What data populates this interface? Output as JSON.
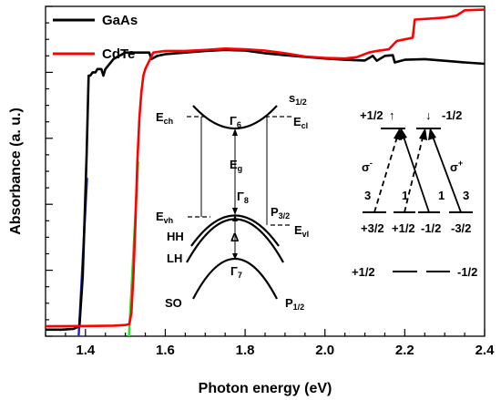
{
  "chart_data": {
    "type": "line",
    "xlabel": "Photon energy (eV)",
    "ylabel": "Absorbance (a. u.)",
    "xlim": [
      1.3,
      2.4
    ],
    "ylim": [
      0,
      1
    ],
    "x_ticks": [
      "1.4",
      "1.6",
      "1.8",
      "2.0",
      "2.2",
      "2.4"
    ],
    "x_tick_values": [
      1.4,
      1.6,
      1.8,
      2.0,
      2.2,
      2.4
    ],
    "y_ticks_labeled": false,
    "legend": {
      "placement": "top-left",
      "entries": [
        "GaAs",
        "CdTe"
      ]
    },
    "series": [
      {
        "name": "GaAs",
        "color": "#000000",
        "points": [
          [
            1.3,
            0.02
          ],
          [
            1.34,
            0.02
          ],
          [
            1.37,
            0.022
          ],
          [
            1.385,
            0.03
          ],
          [
            1.393,
            0.18
          ],
          [
            1.396,
            0.29
          ],
          [
            1.403,
            0.55
          ],
          [
            1.408,
            0.79
          ],
          [
            1.412,
            0.79
          ],
          [
            1.418,
            0.8
          ],
          [
            1.425,
            0.8
          ],
          [
            1.43,
            0.81
          ],
          [
            1.44,
            0.81
          ],
          [
            1.445,
            0.79
          ],
          [
            1.45,
            0.81
          ],
          [
            1.47,
            0.84
          ],
          [
            1.5,
            0.86
          ],
          [
            1.53,
            0.86
          ],
          [
            1.56,
            0.86
          ],
          [
            1.565,
            0.84
          ],
          [
            1.58,
            0.85
          ],
          [
            1.6,
            0.855
          ],
          [
            1.65,
            0.86
          ],
          [
            1.7,
            0.865
          ],
          [
            1.75,
            0.868
          ],
          [
            1.8,
            0.866
          ],
          [
            1.85,
            0.858
          ],
          [
            1.9,
            0.852
          ],
          [
            1.95,
            0.847
          ],
          [
            2.0,
            0.842
          ],
          [
            2.05,
            0.838
          ],
          [
            2.1,
            0.836
          ],
          [
            2.12,
            0.85
          ],
          [
            2.13,
            0.835
          ],
          [
            2.15,
            0.85
          ],
          [
            2.17,
            0.852
          ],
          [
            2.175,
            0.83
          ],
          [
            2.2,
            0.838
          ],
          [
            2.25,
            0.84
          ],
          [
            2.3,
            0.835
          ],
          [
            2.35,
            0.83
          ],
          [
            2.4,
            0.826
          ]
        ]
      },
      {
        "name": "CdTe",
        "color": "#ff0000",
        "points": [
          [
            1.3,
            0.03
          ],
          [
            1.4,
            0.031
          ],
          [
            1.47,
            0.032
          ],
          [
            1.5,
            0.034
          ],
          [
            1.51,
            0.037
          ],
          [
            1.515,
            0.07
          ],
          [
            1.52,
            0.18
          ],
          [
            1.525,
            0.34
          ],
          [
            1.53,
            0.53
          ],
          [
            1.535,
            0.66
          ],
          [
            1.54,
            0.74
          ],
          [
            1.545,
            0.79
          ],
          [
            1.55,
            0.81
          ],
          [
            1.56,
            0.835
          ],
          [
            1.57,
            0.86
          ],
          [
            1.6,
            0.865
          ],
          [
            1.65,
            0.865
          ],
          [
            1.7,
            0.868
          ],
          [
            1.75,
            0.872
          ],
          [
            1.8,
            0.87
          ],
          [
            1.85,
            0.866
          ],
          [
            1.9,
            0.858
          ],
          [
            1.95,
            0.848
          ],
          [
            2.0,
            0.844
          ],
          [
            2.05,
            0.842
          ],
          [
            2.08,
            0.846
          ],
          [
            2.11,
            0.86
          ],
          [
            2.13,
            0.865
          ],
          [
            2.16,
            0.87
          ],
          [
            2.18,
            0.895
          ],
          [
            2.2,
            0.9
          ],
          [
            2.22,
            0.905
          ],
          [
            2.225,
            0.96
          ],
          [
            2.25,
            0.962
          ],
          [
            2.3,
            0.966
          ],
          [
            2.33,
            0.972
          ],
          [
            2.35,
            0.988
          ],
          [
            2.4,
            0.99
          ]
        ]
      }
    ],
    "fit_lines": [
      {
        "color": "#2030d0",
        "from": [
          1.383,
          0.0
        ],
        "to": [
          1.404,
          0.48
        ]
      },
      {
        "color": "#33dd33",
        "from": [
          1.509,
          0.0
        ],
        "to": [
          1.532,
          0.53
        ]
      }
    ],
    "inset": {
      "band_labels": {
        "ech": "E",
        "ech_sub": "ch",
        "ecl": "E",
        "ecl_sub": "cl",
        "evh": "E",
        "evh_sub": "vh",
        "evl": "E",
        "evl_sub": "vl",
        "eg": "E",
        "eg_sub": "g",
        "gamma6": "Γ",
        "gamma6_sub": "6",
        "gamma8": "Γ",
        "gamma8_sub": "8",
        "gamma7": "Γ",
        "gamma7_sub": "7",
        "s12": "s",
        "s12_sub": "1/2",
        "p32": "P",
        "p32_sub": "3/2",
        "p12": "P",
        "p12_sub": "1/2",
        "hh": "HH",
        "lh": "LH",
        "so": "SO",
        "delta": "Δ"
      },
      "transitions": {
        "top_left": "+1/2",
        "top_right": "-1/2",
        "arrow_up": "↑",
        "arrow_down": "↓",
        "sigma_minus": "σ",
        "sigma_minus_sup": "-",
        "sigma_plus": "σ",
        "sigma_plus_sup": "+",
        "w1": "3",
        "w2": "1",
        "w3": "1",
        "w4": "3",
        "bottom": [
          "+3/2",
          "+1/2",
          "-1/2",
          "-3/2"
        ],
        "lower_left": "+1/2",
        "lower_right": "-1/2"
      }
    }
  }
}
